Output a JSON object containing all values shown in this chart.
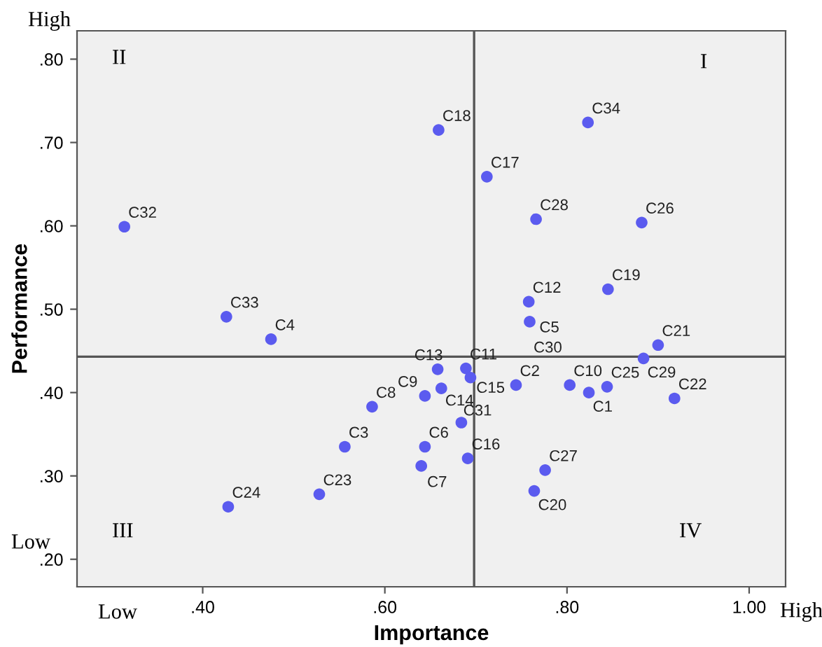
{
  "chart_data": {
    "type": "scatter",
    "xlabel": "Importance",
    "ylabel": "Performance",
    "x": [
      0.314,
      0.426,
      0.475,
      0.659,
      0.823,
      0.712,
      0.766,
      0.882,
      0.845,
      0.758,
      null,
      0.759,
      0.9,
      0.884,
      0.918,
      0.844,
      0.824,
      0.803,
      0.744,
      0.658,
      0.689,
      0.694,
      0.662,
      0.644,
      0.684,
      0.644,
      0.64,
      0.691,
      0.776,
      0.764,
      0.586,
      0.556,
      0.528,
      0.428
    ],
    "series": [
      {
        "color": "#5b5bef",
        "values": [
          0.599,
          0.491,
          0.464,
          0.715,
          0.724,
          0.659,
          0.608,
          0.604,
          0.524,
          0.509,
          null,
          0.485,
          0.457,
          0.441,
          0.393,
          0.407,
          0.4,
          0.409,
          0.409,
          0.428,
          0.429,
          0.418,
          0.405,
          0.396,
          0.364,
          0.335,
          0.312,
          0.321,
          0.307,
          0.282,
          0.383,
          0.335,
          0.278,
          0.263
        ]
      }
    ],
    "annotations": [
      {
        "text": "C32",
        "x": 0.314,
        "y": 0.599
      },
      {
        "text": "C33",
        "x": 0.426,
        "y": 0.491
      },
      {
        "text": "C4",
        "x": 0.475,
        "y": 0.464
      },
      {
        "text": "C18",
        "x": 0.659,
        "y": 0.715
      },
      {
        "text": "C34",
        "x": 0.823,
        "y": 0.724
      },
      {
        "text": "C17",
        "x": 0.712,
        "y": 0.659
      },
      {
        "text": "C28",
        "x": 0.766,
        "y": 0.608
      },
      {
        "text": "C26",
        "x": 0.882,
        "y": 0.604
      },
      {
        "text": "C19",
        "x": 0.845,
        "y": 0.524
      },
      {
        "text": "C12",
        "x": 0.758,
        "y": 0.509
      },
      {
        "text": "C5",
        "x": 0.759,
        "y": 0.487
      },
      {
        "text": "C30",
        "x": 0.759,
        "y": 0.485
      },
      {
        "text": "C21",
        "x": 0.9,
        "y": 0.457
      },
      {
        "text": "C29",
        "x": 0.884,
        "y": 0.441
      },
      {
        "text": "C22",
        "x": 0.918,
        "y": 0.393
      },
      {
        "text": "C25",
        "x": 0.844,
        "y": 0.407
      },
      {
        "text": "C1",
        "x": 0.824,
        "y": 0.4
      },
      {
        "text": "C10",
        "x": 0.803,
        "y": 0.409
      },
      {
        "text": "C2",
        "x": 0.744,
        "y": 0.409
      },
      {
        "text": "C13",
        "x": 0.658,
        "y": 0.428
      },
      {
        "text": "C11",
        "x": 0.689,
        "y": 0.429
      },
      {
        "text": "C15",
        "x": 0.694,
        "y": 0.418
      },
      {
        "text": "C14",
        "x": 0.662,
        "y": 0.405
      },
      {
        "text": "C9",
        "x": 0.644,
        "y": 0.396
      },
      {
        "text": "C31",
        "x": 0.684,
        "y": 0.364
      },
      {
        "text": "C6",
        "x": 0.644,
        "y": 0.335
      },
      {
        "text": "C7",
        "x": 0.64,
        "y": 0.312
      },
      {
        "text": "C16",
        "x": 0.691,
        "y": 0.321
      },
      {
        "text": "C27",
        "x": 0.776,
        "y": 0.307
      },
      {
        "text": "C20",
        "x": 0.764,
        "y": 0.282
      },
      {
        "text": "C8",
        "x": 0.586,
        "y": 0.383
      },
      {
        "text": "C3",
        "x": 0.556,
        "y": 0.335
      },
      {
        "text": "C23",
        "x": 0.528,
        "y": 0.278
      },
      {
        "text": "C24",
        "x": 0.428,
        "y": 0.263
      },
      "II",
      "I",
      "III",
      "IV",
      "High",
      "Low",
      "Low",
      "High"
    ],
    "ref_lines": [
      {
        "axis": "x",
        "value": 0.698,
        "color": "#555555"
      },
      {
        "axis": "y",
        "value": 0.443,
        "color": "#555555"
      }
    ],
    "xlim": [
      0.262,
      1.04
    ],
    "ylim": [
      0.167,
      0.834
    ],
    "xticks": [
      {
        "value": 0.4,
        "label": ".40"
      },
      {
        "value": 0.6,
        "label": ".60"
      },
      {
        "value": 0.8,
        "label": ".80"
      },
      {
        "value": 1.0,
        "label": "1.00"
      }
    ],
    "yticks": [
      {
        "value": 0.2,
        "label": ".20"
      },
      {
        "value": 0.3,
        "label": ".30"
      },
      {
        "value": 0.4,
        "label": ".40"
      },
      {
        "value": 0.5,
        "label": ".50"
      },
      {
        "value": 0.6,
        "label": ".60"
      },
      {
        "value": 0.7,
        "label": ".70"
      },
      {
        "value": 0.8,
        "label": ".80"
      }
    ],
    "marker": "circle",
    "grid": false,
    "legend": false
  }
}
